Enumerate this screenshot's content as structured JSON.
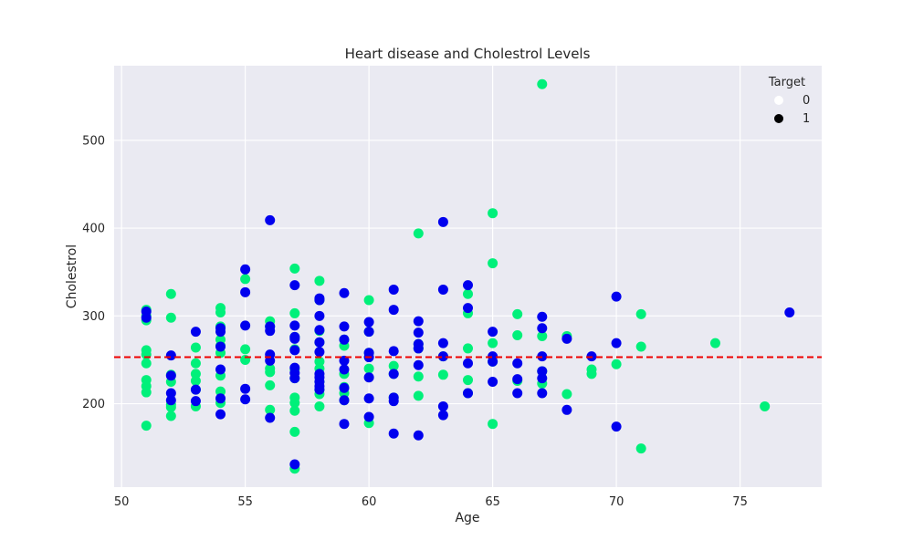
{
  "chart_data": {
    "type": "scatter",
    "title": "Heart disease and Cholestrol Levels",
    "xlabel": "Age",
    "ylabel": "Cholestrol",
    "xlim": [
      49.7,
      78.3
    ],
    "ylim": [
      105,
      585
    ],
    "xticks": [
      50,
      55,
      60,
      65,
      70,
      75
    ],
    "yticks": [
      200,
      300,
      400,
      500
    ],
    "grid": true,
    "legend": {
      "title": "Target",
      "placement": "top-right",
      "entries": [
        {
          "label": "0",
          "color": "#ffffff"
        },
        {
          "label": "1",
          "color": "#000000"
        }
      ]
    },
    "colors": {
      "target_0": "#00f07a",
      "target_1": "#0000ee",
      "mean_line": "#ee0000",
      "plot_bg": "#eaeaf2"
    },
    "mean_line": {
      "y": 253,
      "style": "dashed"
    },
    "series": [
      {
        "target": 0,
        "points": [
          [
            51,
            307
          ],
          [
            51,
            300
          ],
          [
            51,
            295
          ],
          [
            51,
            261
          ],
          [
            51,
            256
          ],
          [
            51,
            246
          ],
          [
            51,
            227
          ],
          [
            51,
            220
          ],
          [
            51,
            213
          ],
          [
            51,
            175
          ],
          [
            52,
            325
          ],
          [
            52,
            298
          ],
          [
            52,
            233
          ],
          [
            52,
            225
          ],
          [
            52,
            199
          ],
          [
            52,
            196
          ],
          [
            52,
            186
          ],
          [
            53,
            264
          ],
          [
            53,
            246
          ],
          [
            53,
            234
          ],
          [
            53,
            226
          ],
          [
            53,
            216
          ],
          [
            53,
            197
          ],
          [
            54,
            309
          ],
          [
            54,
            304
          ],
          [
            54,
            288
          ],
          [
            54,
            273
          ],
          [
            54,
            266
          ],
          [
            54,
            258
          ],
          [
            54,
            232
          ],
          [
            54,
            214
          ],
          [
            54,
            201
          ],
          [
            55,
            342
          ],
          [
            55,
            262
          ],
          [
            55,
            250
          ],
          [
            56,
            294
          ],
          [
            56,
            288
          ],
          [
            56,
            240
          ],
          [
            56,
            236
          ],
          [
            56,
            221
          ],
          [
            56,
            193
          ],
          [
            57,
            354
          ],
          [
            57,
            303
          ],
          [
            57,
            276
          ],
          [
            57,
            262
          ],
          [
            57,
            239
          ],
          [
            57,
            229
          ],
          [
            57,
            207
          ],
          [
            57,
            201
          ],
          [
            57,
            192
          ],
          [
            57,
            168
          ],
          [
            57,
            126
          ],
          [
            58,
            340
          ],
          [
            58,
            318
          ],
          [
            58,
            283
          ],
          [
            58,
            270
          ],
          [
            58,
            248
          ],
          [
            58,
            240
          ],
          [
            58,
            225
          ],
          [
            58,
            216
          ],
          [
            58,
            211
          ],
          [
            58,
            197
          ],
          [
            59,
            273
          ],
          [
            59,
            266
          ],
          [
            59,
            234
          ],
          [
            59,
            219
          ],
          [
            59,
            212
          ],
          [
            59,
            204
          ],
          [
            60,
            318
          ],
          [
            60,
            282
          ],
          [
            60,
            258
          ],
          [
            60,
            240
          ],
          [
            60,
            178
          ],
          [
            61,
            243
          ],
          [
            61,
            234
          ],
          [
            61,
            207
          ],
          [
            62,
            394
          ],
          [
            62,
            268
          ],
          [
            62,
            263
          ],
          [
            62,
            231
          ],
          [
            62,
            209
          ],
          [
            63,
            254
          ],
          [
            63,
            233
          ],
          [
            64,
            325
          ],
          [
            64,
            303
          ],
          [
            64,
            263
          ],
          [
            64,
            227
          ],
          [
            64,
            212
          ],
          [
            65,
            417
          ],
          [
            65,
            360
          ],
          [
            65,
            269
          ],
          [
            65,
            248
          ],
          [
            65,
            177
          ],
          [
            66,
            302
          ],
          [
            66,
            278
          ],
          [
            66,
            226
          ],
          [
            67,
            564
          ],
          [
            67,
            277
          ],
          [
            67,
            237
          ],
          [
            67,
            223
          ],
          [
            68,
            277
          ],
          [
            68,
            211
          ],
          [
            69,
            239
          ],
          [
            69,
            234
          ],
          [
            70,
            245
          ],
          [
            71,
            302
          ],
          [
            71,
            265
          ],
          [
            71,
            149
          ],
          [
            74,
            269
          ],
          [
            76,
            197
          ]
        ]
      },
      {
        "target": 1,
        "points": [
          [
            51,
            305
          ],
          [
            51,
            298
          ],
          [
            52,
            255
          ],
          [
            52,
            232
          ],
          [
            52,
            212
          ],
          [
            52,
            204
          ],
          [
            53,
            282
          ],
          [
            53,
            216
          ],
          [
            53,
            203
          ],
          [
            54,
            286
          ],
          [
            54,
            282
          ],
          [
            54,
            265
          ],
          [
            54,
            239
          ],
          [
            54,
            206
          ],
          [
            54,
            188
          ],
          [
            55,
            353
          ],
          [
            55,
            327
          ],
          [
            55,
            289
          ],
          [
            55,
            217
          ],
          [
            55,
            205
          ],
          [
            56,
            409
          ],
          [
            56,
            288
          ],
          [
            56,
            283
          ],
          [
            56,
            256
          ],
          [
            56,
            249
          ],
          [
            56,
            184
          ],
          [
            57,
            335
          ],
          [
            57,
            289
          ],
          [
            57,
            276
          ],
          [
            57,
            274
          ],
          [
            57,
            261
          ],
          [
            57,
            241
          ],
          [
            57,
            235
          ],
          [
            57,
            229
          ],
          [
            57,
            131
          ],
          [
            58,
            320
          ],
          [
            58,
            318
          ],
          [
            58,
            300
          ],
          [
            58,
            284
          ],
          [
            58,
            270
          ],
          [
            58,
            259
          ],
          [
            58,
            234
          ],
          [
            58,
            230
          ],
          [
            58,
            225
          ],
          [
            58,
            220
          ],
          [
            58,
            216
          ],
          [
            59,
            326
          ],
          [
            59,
            288
          ],
          [
            59,
            273
          ],
          [
            59,
            249
          ],
          [
            59,
            239
          ],
          [
            59,
            218
          ],
          [
            59,
            204
          ],
          [
            59,
            177
          ],
          [
            60,
            293
          ],
          [
            60,
            282
          ],
          [
            60,
            258
          ],
          [
            60,
            253
          ],
          [
            60,
            230
          ],
          [
            60,
            206
          ],
          [
            60,
            185
          ],
          [
            61,
            330
          ],
          [
            61,
            307
          ],
          [
            61,
            260
          ],
          [
            61,
            234
          ],
          [
            61,
            207
          ],
          [
            61,
            203
          ],
          [
            61,
            166
          ],
          [
            62,
            294
          ],
          [
            62,
            281
          ],
          [
            62,
            268
          ],
          [
            62,
            263
          ],
          [
            62,
            244
          ],
          [
            62,
            164
          ],
          [
            63,
            407
          ],
          [
            63,
            330
          ],
          [
            63,
            269
          ],
          [
            63,
            254
          ],
          [
            63,
            197
          ],
          [
            63,
            187
          ],
          [
            64,
            335
          ],
          [
            64,
            309
          ],
          [
            64,
            246
          ],
          [
            64,
            212
          ],
          [
            65,
            282
          ],
          [
            65,
            254
          ],
          [
            65,
            248
          ],
          [
            65,
            225
          ],
          [
            66,
            246
          ],
          [
            66,
            228
          ],
          [
            66,
            212
          ],
          [
            67,
            299
          ],
          [
            67,
            286
          ],
          [
            67,
            254
          ],
          [
            67,
            237
          ],
          [
            67,
            229
          ],
          [
            67,
            212
          ],
          [
            68,
            274
          ],
          [
            68,
            193
          ],
          [
            69,
            254
          ],
          [
            70,
            322
          ],
          [
            70,
            269
          ],
          [
            70,
            174
          ],
          [
            77,
            304
          ]
        ]
      }
    ]
  }
}
